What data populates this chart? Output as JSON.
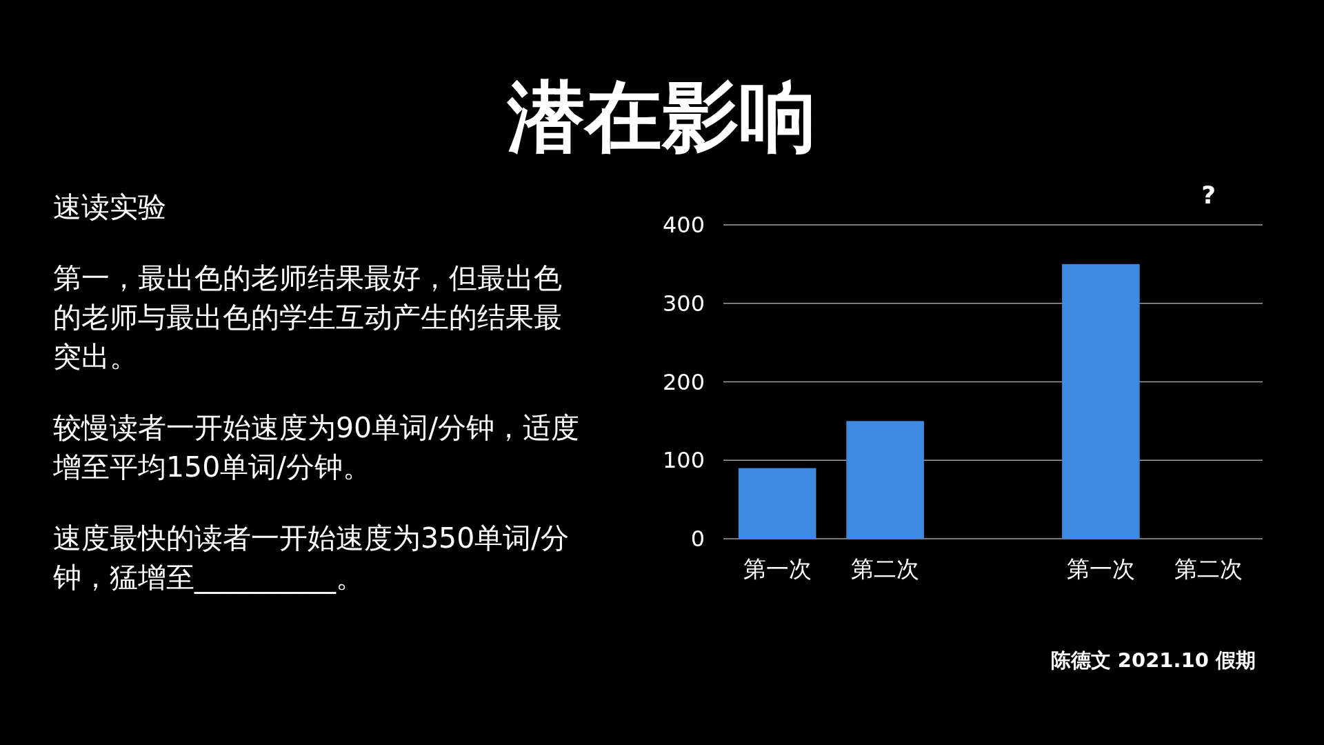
{
  "chart_data": {
    "type": "bar",
    "title": "潜在影响",
    "categories": [
      "第一次",
      "第二次",
      null,
      "第一次",
      "第二次"
    ],
    "values": [
      90,
      150,
      null,
      350,
      null
    ],
    "color": "#3d8ae0",
    "ylim": [
      0,
      400
    ],
    "yticks": [
      0,
      100,
      200,
      300,
      400
    ],
    "grid": "y",
    "annotations": [
      "速读实验",
      "第一，最出色的老师结果最好，但最出色的老师与最出色的学生互动产生的结果最突出。",
      "较慢读者一开始速度为90单词/分钟，适度增至平均150单词/分钟。",
      "速度最快的读者一开始速度为350单词/分钟，猛增至__________。",
      "?",
      "陈德文 2021.10 假期"
    ]
  }
}
